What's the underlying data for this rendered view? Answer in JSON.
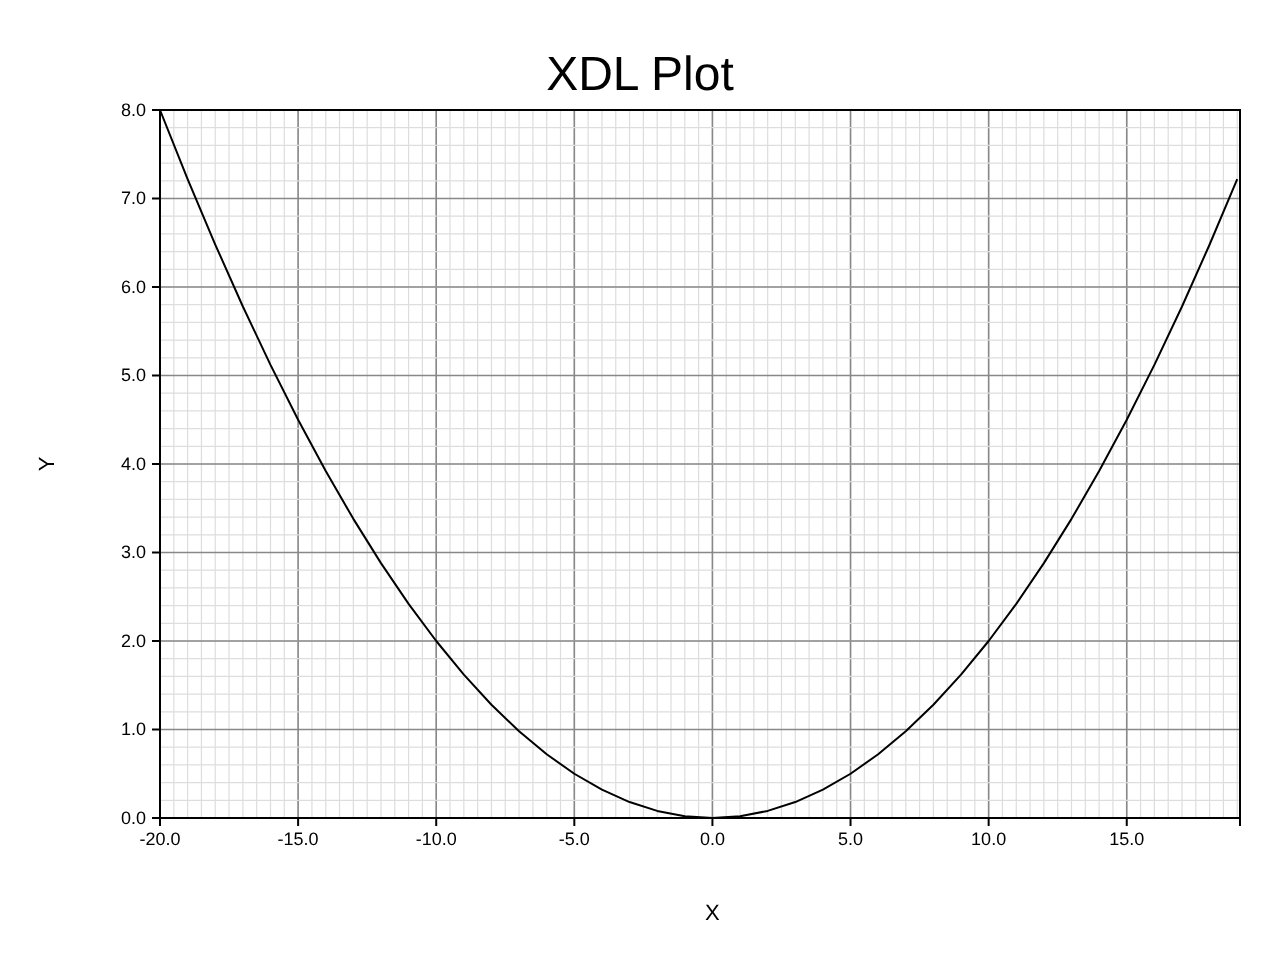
{
  "chart_data": {
    "type": "line",
    "title": "XDL Plot",
    "xlabel": "X",
    "ylabel": "Y",
    "x": [
      -20,
      -19,
      -18,
      -17,
      -16,
      -15,
      -14,
      -13,
      -12,
      -11,
      -10,
      -9,
      -8,
      -7,
      -6,
      -5,
      -4,
      -3,
      -2,
      -1,
      0,
      1,
      2,
      3,
      4,
      5,
      6,
      7,
      8,
      9,
      10,
      11,
      12,
      13,
      14,
      15,
      16,
      17,
      18,
      19
    ],
    "series": [
      {
        "color": "#000000",
        "values": [
          8,
          7.22,
          6.48,
          5.78,
          5.12,
          4.5,
          3.92,
          3.38,
          2.88,
          2.42,
          2,
          1.62,
          1.28,
          0.98,
          0.72,
          0.5,
          0.32,
          0.18,
          0.08,
          0.02,
          0,
          0.02,
          0.08,
          0.18,
          0.32,
          0.5,
          0.72,
          0.98,
          1.28,
          1.62,
          2,
          2.42,
          2.88,
          3.38,
          3.92,
          4.5,
          5.12,
          5.78,
          6.48,
          7.22
        ]
      }
    ],
    "xlim": [
      -20,
      19.1
    ],
    "ylim": [
      0,
      8
    ],
    "xticks": [
      {
        "value": -20,
        "label": "-20.0"
      },
      {
        "value": -15,
        "label": "-15.0"
      },
      {
        "value": -10,
        "label": "-10.0"
      },
      {
        "value": -5,
        "label": "-5.0"
      },
      {
        "value": 0,
        "label": "0.0"
      },
      {
        "value": 5,
        "label": "5.0"
      },
      {
        "value": 10,
        "label": "10.0"
      },
      {
        "value": 15,
        "label": "15.0"
      }
    ],
    "yticks": [
      {
        "value": 0,
        "label": "0.0"
      },
      {
        "value": 1,
        "label": "1.0"
      },
      {
        "value": 2,
        "label": "2.0"
      },
      {
        "value": 3,
        "label": "3.0"
      },
      {
        "value": 4,
        "label": "4.0"
      },
      {
        "value": 5,
        "label": "5.0"
      },
      {
        "value": 6,
        "label": "6.0"
      },
      {
        "value": 7,
        "label": "7.0"
      },
      {
        "value": 8,
        "label": "8.0"
      }
    ],
    "grid": true,
    "marker": "none",
    "line_style": "solid"
  }
}
